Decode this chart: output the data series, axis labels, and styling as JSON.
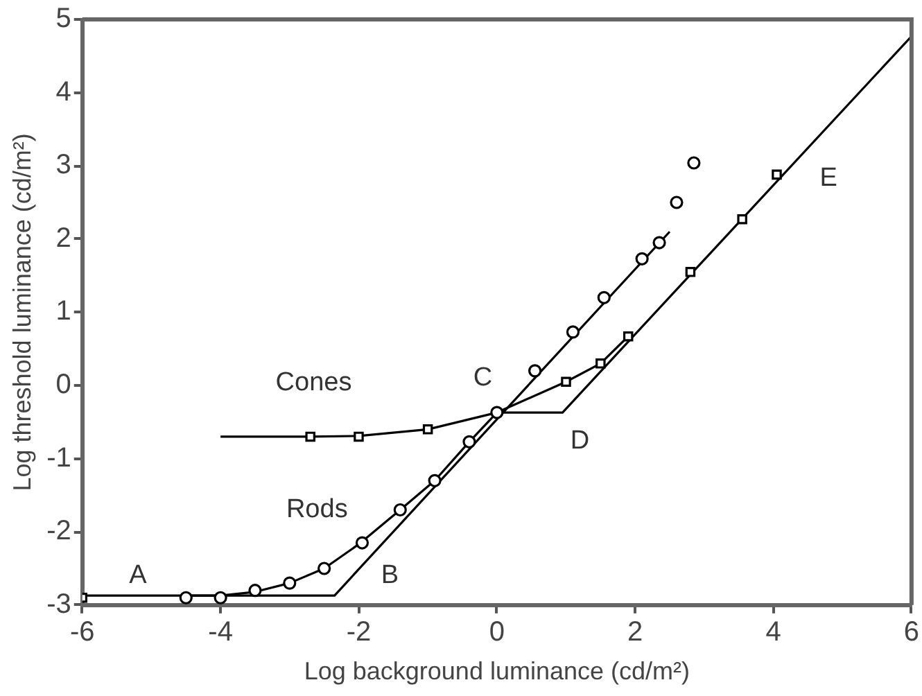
{
  "chart_data": {
    "type": "line",
    "xlabel": "Log background luminance (cd/m²)",
    "ylabel": "Log threshold luminance (cd/m²)",
    "xlim": [
      -6,
      6
    ],
    "xticks": [
      -6,
      -4,
      -2,
      0,
      2,
      4,
      6
    ],
    "ylim": [
      -3,
      5
    ],
    "yticks": [
      -3,
      -2,
      -1,
      0,
      1,
      2,
      3,
      4,
      5
    ],
    "grid": false,
    "legend": false,
    "series": [
      {
        "type": "line",
        "marker": "none",
        "color": "#000000",
        "x": [
          -6,
          -2.35,
          2.5
        ],
        "values": [
          -2.87,
          -2.87,
          2.1
        ]
      },
      {
        "type": "line",
        "marker": "none",
        "color": "#000000",
        "x": [
          0,
          0.95,
          6
        ],
        "values": [
          -0.37,
          -0.37,
          4.77
        ]
      },
      {
        "type": "line",
        "marker": "none",
        "color": "#000000",
        "x": [
          -4.5,
          -4,
          -3.5,
          -3,
          -2.5,
          -2,
          -1.4,
          -0.9,
          -0.4,
          0
        ],
        "values": [
          -2.87,
          -2.87,
          -2.82,
          -2.7,
          -2.5,
          -2.17,
          -1.7,
          -1.3,
          -0.77,
          -0.37
        ]
      },
      {
        "type": "line",
        "marker": "none",
        "color": "#000000",
        "x": [
          -4,
          -2.7,
          -2,
          -1,
          0,
          1,
          1.5,
          1.9
        ],
        "values": [
          -0.7,
          -0.7,
          -0.69,
          -0.6,
          -0.37,
          0.05,
          0.3,
          0.67
        ]
      },
      {
        "type": "scatter",
        "marker": "circle",
        "color": "#000000",
        "x": [
          -4.5,
          -4,
          -3.5,
          -3,
          -2.5,
          -1.95,
          -1.4,
          -0.9,
          -0.4,
          0,
          0.55,
          1.1,
          1.55,
          2.1,
          2.35,
          2.6,
          2.85
        ],
        "values": [
          -2.9,
          -2.9,
          -2.8,
          -2.7,
          -2.5,
          -2.15,
          -1.7,
          -1.3,
          -0.77,
          -0.37,
          0.2,
          0.73,
          1.2,
          1.73,
          1.95,
          2.5,
          3.04
        ]
      },
      {
        "type": "scatter",
        "marker": "square",
        "color": "#000000",
        "x": [
          -6,
          -2.7,
          -2,
          -1,
          1,
          1.5,
          1.9,
          2.8,
          3.55,
          4.05
        ],
        "values": [
          -2.9,
          -0.7,
          -0.7,
          -0.6,
          0.05,
          0.3,
          0.67,
          1.55,
          2.27,
          2.88
        ]
      }
    ],
    "annotations": [
      "Cones",
      "Rods",
      "A",
      "B",
      "C",
      "D",
      "E"
    ]
  }
}
